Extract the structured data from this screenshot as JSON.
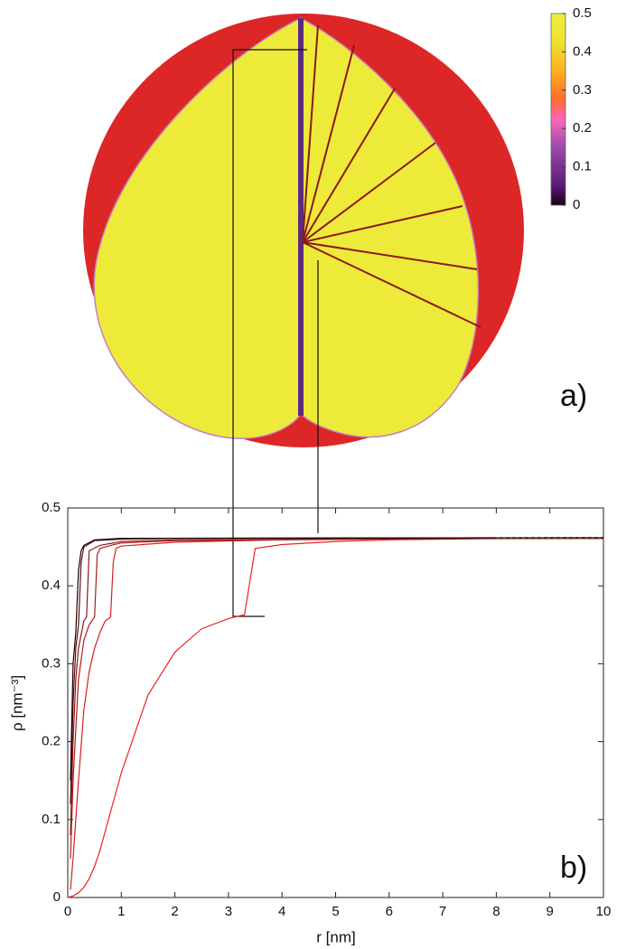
{
  "chart_data": [
    {
      "type": "colormap",
      "label": "a)",
      "clim": [
        0,
        0.5
      ],
      "cticks": [
        0,
        0.1,
        0.2,
        0.3,
        0.4,
        0.5
      ]
    },
    {
      "type": "line",
      "label": "b)",
      "xlabel": "r [nm]",
      "ylabel": "ρ [nm⁻³]",
      "xlim": [
        0,
        10
      ],
      "xticks": [
        0,
        1,
        2,
        3,
        4,
        5,
        6,
        7,
        8,
        9,
        10
      ],
      "ylim": [
        0,
        0.5
      ],
      "yticks": [
        0,
        0.1,
        0.2,
        0.3,
        0.4,
        0.5
      ],
      "series": [
        {
          "color": "#ee2222",
          "x": [
            0,
            0.1,
            0.2,
            0.3,
            0.4,
            0.5,
            0.6,
            0.7,
            0.8,
            0.9,
            1,
            1.5,
            2,
            2.5,
            3,
            3.3,
            3.5,
            4,
            5,
            6,
            7,
            8,
            9,
            10
          ],
          "values": [
            0,
            0.002,
            0.006,
            0.013,
            0.024,
            0.04,
            0.06,
            0.085,
            0.11,
            0.135,
            0.16,
            0.26,
            0.315,
            0.345,
            0.358,
            0.363,
            0.448,
            0.453,
            0.457,
            0.459,
            0.46,
            0.461,
            0.461,
            0.461
          ]
        },
        {
          "color": "#d42020",
          "x": [
            0.05,
            0.1,
            0.2,
            0.3,
            0.4,
            0.5,
            0.6,
            0.7,
            0.8,
            0.85,
            0.9,
            1,
            2,
            4,
            6,
            8,
            10
          ],
          "values": [
            0.01,
            0.05,
            0.15,
            0.24,
            0.29,
            0.32,
            0.34,
            0.355,
            0.36,
            0.43,
            0.448,
            0.451,
            0.456,
            0.459,
            0.46,
            0.461,
            0.461
          ]
        },
        {
          "color": "#b01c1c",
          "x": [
            0.05,
            0.1,
            0.2,
            0.3,
            0.4,
            0.5,
            0.55,
            0.6,
            0.8,
            1,
            2,
            5,
            10
          ],
          "values": [
            0.05,
            0.15,
            0.28,
            0.33,
            0.35,
            0.36,
            0.44,
            0.448,
            0.452,
            0.455,
            0.458,
            0.46,
            0.461
          ]
        },
        {
          "color": "#8b1a1a",
          "x": [
            0.05,
            0.1,
            0.15,
            0.2,
            0.3,
            0.35,
            0.4,
            0.6,
            1,
            2,
            5,
            10
          ],
          "values": [
            0.08,
            0.2,
            0.28,
            0.32,
            0.355,
            0.36,
            0.445,
            0.452,
            0.457,
            0.459,
            0.46,
            0.461
          ]
        },
        {
          "color": "#5a1010",
          "x": [
            0.05,
            0.1,
            0.15,
            0.2,
            0.25,
            0.3,
            0.5,
            1,
            2,
            10
          ],
          "values": [
            0.12,
            0.25,
            0.32,
            0.35,
            0.43,
            0.45,
            0.458,
            0.46,
            0.461,
            0.462
          ]
        },
        {
          "color": "#200000",
          "x": [
            0.05,
            0.1,
            0.15,
            0.2,
            0.25,
            0.3,
            0.5,
            1,
            10
          ],
          "values": [
            0.15,
            0.3,
            0.34,
            0.42,
            0.445,
            0.452,
            0.459,
            0.461,
            0.462
          ]
        },
        {
          "color": "#2a9a4a",
          "dash": true,
          "x": [
            8,
            10
          ],
          "values": [
            0.462,
            0.462
          ]
        }
      ]
    }
  ]
}
